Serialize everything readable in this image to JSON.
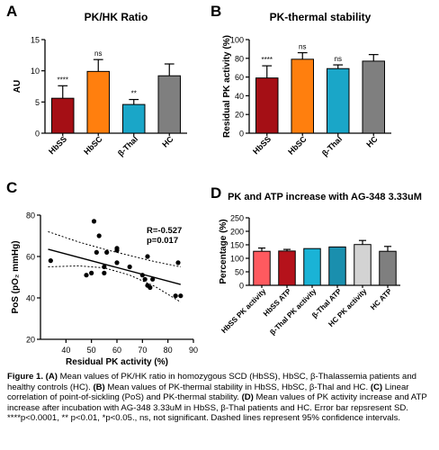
{
  "figure": {
    "letters": [
      "A",
      "B",
      "C",
      "D"
    ],
    "caption": {
      "head": "Figure 1.",
      "parts": [
        {
          "b": "(A)",
          "t": " Mean values of PK/HK ratio in homozygous SCD (HbSS), HbSC, β-Thalassemia patients and healthy controls (HC). "
        },
        {
          "b": "(B)",
          "t": " Mean values of PK-thermal stability in  HbSS, HbSC, β-Thal and HC. "
        },
        {
          "b": "(C)",
          "t": " Linear correlation of point-of-sickling (PoS) and PK-thermal stability. "
        },
        {
          "b": "(D)",
          "t": " Mean values of PK activity increase and ATP increase after incubation with AG-348 3.33uM in HbSS, β-Thal patients and HC. Error bar repsresent SD. ****p<0.0001, ** p<0.01, *p<0.05., ns, not significant. Dashed lines represent 95% confidence intervals."
        }
      ]
    }
  },
  "chart_data": [
    {
      "type": "bar",
      "panel": "A",
      "title": "PK/HK Ratio",
      "xlabel": "",
      "ylabel": "AU",
      "ylim": [
        0,
        15
      ],
      "yticks": [
        0,
        5,
        10,
        15
      ],
      "categories": [
        "HbSS",
        "HbSC",
        "β-Thal",
        "HC"
      ],
      "values": [
        5.6,
        9.9,
        4.6,
        9.2
      ],
      "errors": [
        2.0,
        1.9,
        0.8,
        1.9
      ],
      "annotations": [
        "****",
        "ns",
        "**",
        ""
      ],
      "colors": [
        "#a50f15",
        "#ff7f0e",
        "#1aa6c8",
        "#7f7f7f"
      ],
      "grid": false
    },
    {
      "type": "bar",
      "panel": "B",
      "title": "PK-thermal stability",
      "xlabel": "",
      "ylabel": "Residual PK activity (%)",
      "ylim": [
        0,
        100
      ],
      "yticks": [
        0,
        20,
        40,
        60,
        80,
        100
      ],
      "categories": [
        "HbSS",
        "HbSC",
        "β-Thal",
        "HC"
      ],
      "values": [
        59,
        79,
        69,
        77
      ],
      "errors": [
        13,
        7,
        4,
        7
      ],
      "annotations": [
        "****",
        "ns",
        "ns",
        ""
      ],
      "colors": [
        "#a50f15",
        "#ff7f0e",
        "#1aa6c8",
        "#7f7f7f"
      ],
      "grid": false
    },
    {
      "type": "scatter",
      "panel": "C",
      "title": "",
      "xlabel": "Residual PK activity (%)",
      "ylabel": "PoS (pO₂ mmHg)",
      "xlim": [
        30,
        90
      ],
      "ylim": [
        20,
        80
      ],
      "xticks": [
        40,
        50,
        60,
        70,
        80,
        90
      ],
      "yticks": [
        20,
        40,
        60,
        80
      ],
      "points": [
        [
          34,
          58
        ],
        [
          48,
          51
        ],
        [
          50,
          52
        ],
        [
          51,
          77
        ],
        [
          52,
          62
        ],
        [
          53,
          70
        ],
        [
          55,
          55
        ],
        [
          55,
          52
        ],
        [
          56,
          62
        ],
        [
          60,
          57
        ],
        [
          60,
          64
        ],
        [
          60,
          63
        ],
        [
          65,
          55
        ],
        [
          70,
          51
        ],
        [
          71,
          49
        ],
        [
          72,
          60
        ],
        [
          72,
          46
        ],
        [
          73,
          45
        ],
        [
          74,
          49
        ],
        [
          83,
          41
        ],
        [
          84,
          57
        ],
        [
          85,
          41
        ]
      ],
      "fit": {
        "x": [
          33,
          85
        ],
        "y": [
          63.5,
          46.5
        ]
      },
      "ci_upper": {
        "x": [
          33,
          45,
          55,
          65,
          75,
          85
        ],
        "y": [
          72,
          67,
          63.5,
          60.5,
          57.5,
          55
        ]
      },
      "ci_lower": {
        "x": [
          33,
          45,
          55,
          65,
          75,
          85
        ],
        "y": [
          55,
          55.5,
          54.5,
          51,
          45.5,
          38
        ]
      },
      "stats": {
        "r": "R=-0.527",
        "p": "p=0.017"
      },
      "grid": false
    },
    {
      "type": "bar",
      "panel": "D",
      "title": "PK and ATP increase with AG-348 3.33uM",
      "xlabel": "",
      "ylabel": "Percentage (%)",
      "ylim": [
        0,
        250
      ],
      "yticks": [
        0,
        50,
        100,
        150,
        200,
        250
      ],
      "categories": [
        "HbSS PK activity",
        "HbSS ATP",
        "β-Thal PK activity",
        "β-Thal ATP",
        "HC PK activity",
        "HC ATP"
      ],
      "values": [
        126,
        127,
        136,
        142,
        151,
        126
      ],
      "errors": [
        12,
        6,
        0,
        0,
        15,
        18
      ],
      "colors": [
        "#ff5a5f",
        "#b5121b",
        "#1ab3d6",
        "#1a8fae",
        "#d3d3d3",
        "#7f7f7f"
      ],
      "grid": false
    }
  ]
}
